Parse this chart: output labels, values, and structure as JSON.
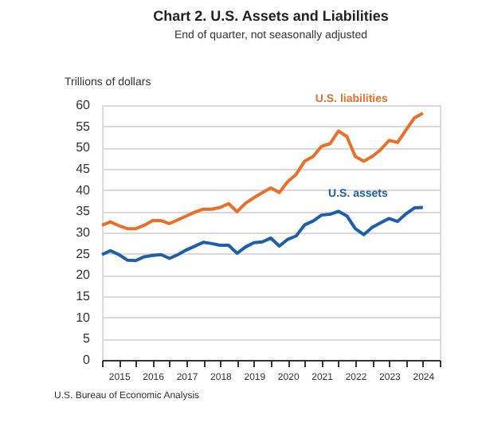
{
  "chart_data": {
    "type": "line",
    "title": "Chart 2. U.S. Assets and Liabilities",
    "subtitle": "End of quarter, not seasonally adjusted",
    "ylabel": "Trillions of dollars",
    "x": [
      2015,
      2015.25,
      2015.5,
      2015.75,
      2016,
      2016.25,
      2016.5,
      2016.75,
      2017,
      2017.25,
      2017.5,
      2017.75,
      2018,
      2018.25,
      2018.5,
      2018.75,
      2019,
      2019.25,
      2019.5,
      2019.75,
      2020,
      2020.25,
      2020.5,
      2020.75,
      2021,
      2021.25,
      2021.5,
      2021.75,
      2022,
      2022.25,
      2022.5,
      2022.75,
      2023,
      2023.25,
      2023.5,
      2023.75,
      2024,
      2024.25,
      2024.5
    ],
    "series": [
      {
        "name": "U.S. liabilities",
        "color": "#e8702a",
        "values": [
          31.7,
          32.5,
          31.6,
          30.9,
          30.9,
          31.7,
          32.8,
          32.8,
          32.1,
          33.0,
          33.9,
          34.8,
          35.5,
          35.5,
          35.9,
          36.8,
          34.9,
          36.9,
          38.2,
          39.4,
          40.5,
          39.4,
          42.0,
          43.7,
          46.8,
          47.9,
          50.3,
          50.9,
          53.9,
          52.6,
          47.9,
          46.8,
          47.9,
          49.5,
          51.7,
          51.2,
          54.1,
          57.0,
          58.1
        ]
      },
      {
        "name": "U.S. assets",
        "color": "#1f5ea8",
        "values": [
          24.8,
          25.7,
          24.8,
          23.5,
          23.4,
          24.3,
          24.6,
          24.8,
          23.9,
          24.8,
          25.9,
          26.8,
          27.7,
          27.4,
          27.0,
          27.0,
          25.1,
          26.6,
          27.6,
          27.8,
          28.7,
          26.8,
          28.4,
          29.2,
          31.8,
          32.7,
          34.1,
          34.3,
          35.0,
          33.9,
          30.9,
          29.5,
          31.2,
          32.3,
          33.3,
          32.6,
          34.4,
          35.8,
          35.9
        ]
      }
    ],
    "xlim": [
      2015,
      2025
    ],
    "xticks": [
      {
        "value": 2015,
        "label": null
      },
      {
        "value": 2015.5,
        "label": "2015"
      },
      {
        "value": 2016,
        "label": null
      },
      {
        "value": 2016.5,
        "label": "2016"
      },
      {
        "value": 2017,
        "label": null
      },
      {
        "value": 2017.5,
        "label": "2017"
      },
      {
        "value": 2018,
        "label": null
      },
      {
        "value": 2018.5,
        "label": "2018"
      },
      {
        "value": 2019,
        "label": null
      },
      {
        "value": 2019.5,
        "label": "2019"
      },
      {
        "value": 2020,
        "label": null
      },
      {
        "value": 2020.5,
        "label": "2020"
      },
      {
        "value": 2021,
        "label": null
      },
      {
        "value": 2021.5,
        "label": "2021"
      },
      {
        "value": 2022,
        "label": null
      },
      {
        "value": 2022.5,
        "label": "2022"
      },
      {
        "value": 2023,
        "label": null
      },
      {
        "value": 2023.5,
        "label": "2023"
      },
      {
        "value": 2024,
        "label": null
      },
      {
        "value": 2024.5,
        "label": "2024"
      },
      {
        "value": 2025,
        "label": null
      }
    ],
    "ylim": [
      0,
      60
    ],
    "yticks": [
      0,
      5,
      10,
      15,
      20,
      25,
      30,
      35,
      40,
      45,
      50,
      55,
      60
    ],
    "grid": "y",
    "legend": false,
    "marker": "none",
    "line_style": "solid",
    "annotations": [
      "U.S. Bureau of Economic Analysis"
    ]
  }
}
